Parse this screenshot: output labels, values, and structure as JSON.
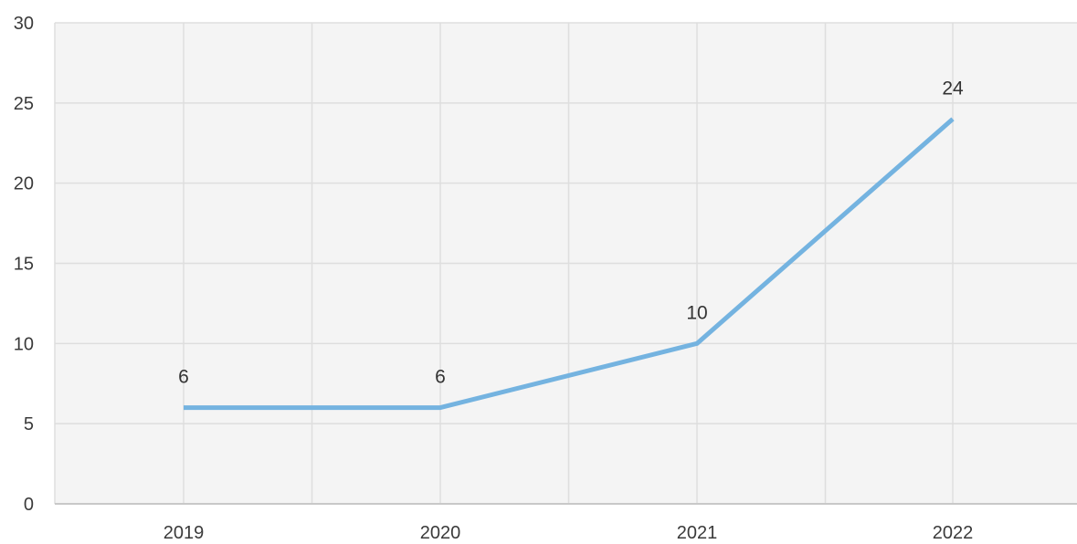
{
  "chart_data": {
    "type": "line",
    "categories": [
      "2019",
      "2020",
      "2021",
      "2022"
    ],
    "series": [
      {
        "values": [
          6,
          6,
          10,
          24
        ]
      }
    ],
    "data_labels": [
      "6",
      "6",
      "10",
      "24"
    ],
    "y_ticks": [
      "0",
      "5",
      "10",
      "15",
      "20",
      "25",
      "30"
    ],
    "ylim": [
      0,
      30
    ],
    "grid": true,
    "legend": "none",
    "colors": {
      "line": "#74b3e0",
      "plot_background": "#f4f4f4",
      "grid": "#dedede",
      "axis": "#c8c8c8"
    }
  }
}
